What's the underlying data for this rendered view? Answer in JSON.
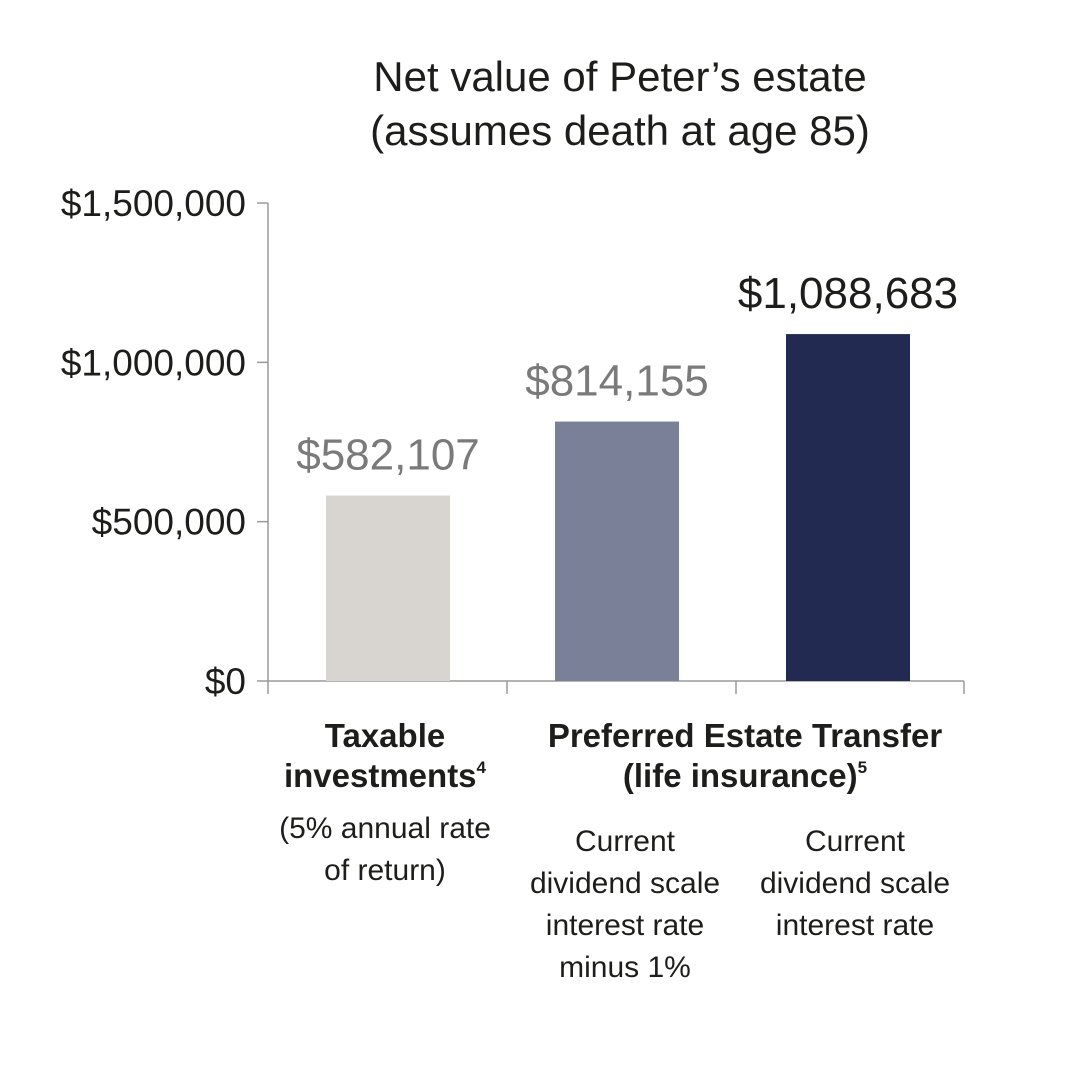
{
  "chart_data": {
    "type": "bar",
    "title": "Net value of Peter’s estate",
    "subtitle": "(assumes death at age 85)",
    "categories": [
      "Taxable investments (5% annual rate of return)",
      "Preferred Estate Transfer (life insurance) – Current dividend scale interest rate minus 1%",
      "Preferred Estate Transfer (life insurance) – Current dividend scale interest rate"
    ],
    "values": [
      582107,
      814155,
      1088683
    ],
    "data_labels": [
      "$582,107",
      "$814,155",
      "$1,088,683"
    ],
    "colors": [
      "#d8d5d0",
      "#7b8099",
      "#222a52"
    ],
    "label_colors": [
      "#7a7a7a",
      "#7a7a7a",
      "#1d1d1b"
    ],
    "ylim": [
      0,
      1500000
    ],
    "yticks": [
      0,
      500000,
      1000000,
      1500000
    ],
    "ytick_labels": [
      "$0",
      "$500,000",
      "$1,000,000",
      "$1,500,000"
    ],
    "xlabel": "",
    "ylabel": "",
    "grid": false,
    "legend": "none"
  },
  "category_text": {
    "group1": {
      "name_line1": "Taxable",
      "name_line2": "investments",
      "footnote": "4",
      "sub_line1": "(5% annual rate",
      "sub_line2": "of return)"
    },
    "group2": {
      "name_line1": "Preferred Estate Transfer",
      "name_line2": "(life insurance)",
      "footnote": "5",
      "bar2_line1": "Current",
      "bar2_line2": "dividend scale",
      "bar2_line3": "interest rate",
      "bar2_line4": "minus 1%",
      "bar3_line1": "Current",
      "bar3_line2": "dividend scale",
      "bar3_line3": "interest rate"
    }
  }
}
